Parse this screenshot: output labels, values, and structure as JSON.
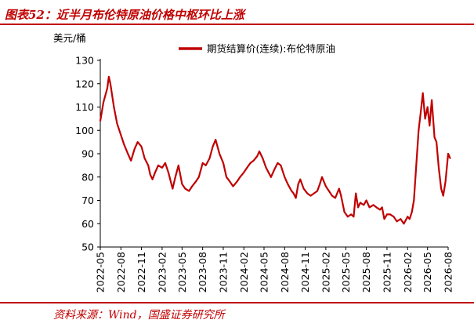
{
  "figure": {
    "title": "图表52：近半月布伦特原油价格中枢环比上涨",
    "source": "资料来源：Wind，国盛证券研究所",
    "accent_color": "#c00000"
  },
  "chart_data": {
    "type": "line",
    "title": "",
    "ylabel": "美元/桶",
    "xlabel": "",
    "ylim": [
      50,
      130
    ],
    "yticks": [
      50,
      60,
      70,
      80,
      90,
      100,
      110,
      120,
      130
    ],
    "x_range": [
      "2022-05",
      "2026-08"
    ],
    "xticks": [
      "2022-05",
      "2022-08",
      "2022-11",
      "2023-02",
      "2023-05",
      "2023-08",
      "2023-11",
      "2024-02",
      "2024-05",
      "2024-08",
      "2024-11",
      "2025-02",
      "2025-05",
      "2025-08",
      "2025-11",
      "2026-02",
      "2026-05",
      "2026-08"
    ],
    "grid": false,
    "legend_position": "top",
    "series": [
      {
        "name": "期货结算价(连续):布伦特原油",
        "color": "#c00000",
        "x": [
          "2022-05-01",
          "2022-05-15",
          "2022-06-01",
          "2022-06-08",
          "2022-06-15",
          "2022-07-01",
          "2022-07-15",
          "2022-08-01",
          "2022-08-15",
          "2022-09-01",
          "2022-09-15",
          "2022-10-01",
          "2022-10-15",
          "2022-11-01",
          "2022-11-15",
          "2022-12-01",
          "2022-12-10",
          "2022-12-20",
          "2023-01-01",
          "2023-01-15",
          "2023-02-01",
          "2023-02-15",
          "2023-03-01",
          "2023-03-20",
          "2023-04-01",
          "2023-04-15",
          "2023-05-01",
          "2023-05-15",
          "2023-06-01",
          "2023-06-15",
          "2023-07-01",
          "2023-07-15",
          "2023-08-01",
          "2023-08-15",
          "2023-09-01",
          "2023-09-15",
          "2023-09-28",
          "2023-10-15",
          "2023-11-01",
          "2023-11-15",
          "2023-12-01",
          "2023-12-15",
          "2024-01-01",
          "2024-01-15",
          "2024-02-01",
          "2024-02-15",
          "2024-03-01",
          "2024-03-15",
          "2024-04-01",
          "2024-04-10",
          "2024-04-25",
          "2024-05-10",
          "2024-06-01",
          "2024-06-15",
          "2024-07-01",
          "2024-07-15",
          "2024-08-01",
          "2024-08-15",
          "2024-09-01",
          "2024-09-10",
          "2024-09-20",
          "2024-10-01",
          "2024-10-10",
          "2024-10-25",
          "2024-11-10",
          "2024-11-25",
          "2024-12-10",
          "2024-12-25",
          "2025-01-05",
          "2025-01-15",
          "2025-02-01",
          "2025-02-15",
          "2025-03-01",
          "2025-03-15",
          "2025-04-01",
          "2025-04-10",
          "2025-04-25",
          "2025-05-10",
          "2025-05-25",
          "2025-06-05",
          "2025-06-15",
          "2025-06-25",
          "2025-07-05",
          "2025-07-20",
          "2025-08-01",
          "2025-08-15",
          "2025-09-01",
          "2025-09-15",
          "2025-10-01",
          "2025-10-10",
          "2025-10-20",
          "2025-11-01",
          "2025-11-15",
          "2025-12-01",
          "2025-12-15",
          "2026-01-01",
          "2026-01-15",
          "2026-02-01",
          "2026-02-10",
          "2026-02-20",
          "2026-03-01",
          "2026-03-08",
          "2026-03-15",
          "2026-03-22",
          "2026-04-01",
          "2026-04-10",
          "2026-04-20",
          "2026-05-01",
          "2026-05-10",
          "2026-05-20",
          "2026-06-01",
          "2026-06-10",
          "2026-06-20",
          "2026-07-01",
          "2026-07-10",
          "2026-07-20",
          "2026-08-01",
          "2026-08-10"
        ],
        "values": [
          104,
          112,
          118,
          123,
          120,
          110,
          103,
          98,
          94,
          90,
          87,
          92,
          95,
          93,
          88,
          85,
          81,
          79,
          82,
          85,
          84,
          86,
          82,
          75,
          80,
          85,
          77,
          75,
          74,
          76,
          78,
          80,
          86,
          85,
          88,
          93,
          96,
          90,
          86,
          80,
          78,
          76,
          78,
          80,
          82,
          84,
          86,
          87,
          89,
          91,
          88,
          84,
          80,
          83,
          86,
          85,
          80,
          77,
          74,
          73,
          71,
          77,
          79,
          75,
          73,
          72,
          73,
          74,
          77,
          80,
          76,
          74,
          72,
          71,
          75,
          72,
          65,
          63,
          64,
          63,
          73,
          67,
          69,
          68,
          70,
          67,
          68,
          67,
          66,
          67,
          62,
          64,
          64,
          63,
          61,
          62,
          60,
          63,
          62,
          65,
          70,
          80,
          90,
          100,
          108,
          116,
          105,
          110,
          102,
          113,
          97,
          95,
          84,
          75,
          72,
          78,
          90,
          88
        ]
      }
    ]
  }
}
